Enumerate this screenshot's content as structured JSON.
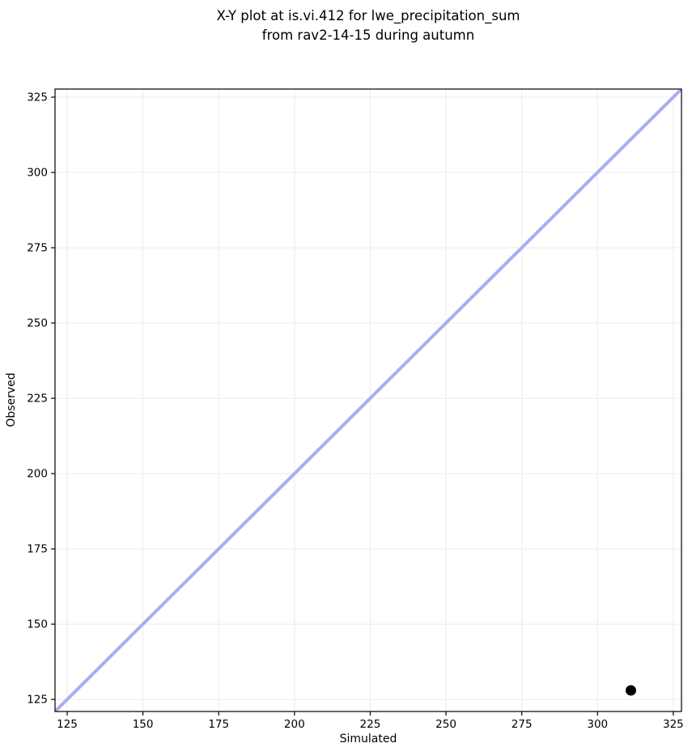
{
  "title": {
    "line1": "X-Y plot at is.vi.412 for lwe_precipitation_sum",
    "line2": "from rav2-14-15 during autumn"
  },
  "chart_data": {
    "type": "scatter",
    "title": "X-Y plot at is.vi.412 for lwe_precipitation_sum from rav2-14-15 during autumn",
    "xlabel": "Simulated",
    "ylabel": "Observed",
    "xlim": [
      121,
      327.7
    ],
    "ylim": [
      121,
      327.7
    ],
    "xticks": [
      125,
      150,
      175,
      200,
      225,
      250,
      275,
      300,
      325
    ],
    "yticks": [
      125,
      150,
      175,
      200,
      225,
      250,
      275,
      300,
      325
    ],
    "grid": true,
    "legend": "none",
    "points": [
      {
        "x": 311,
        "y": 128
      }
    ],
    "identity_line": {
      "from": 121,
      "to": 327.7,
      "color": "#a9aef0",
      "width": 4
    },
    "point_color": "#000000",
    "point_radius": 6.5,
    "grid_color": "#ebebeb",
    "spine_color": "#000000",
    "background_color": "#ffffff"
  }
}
